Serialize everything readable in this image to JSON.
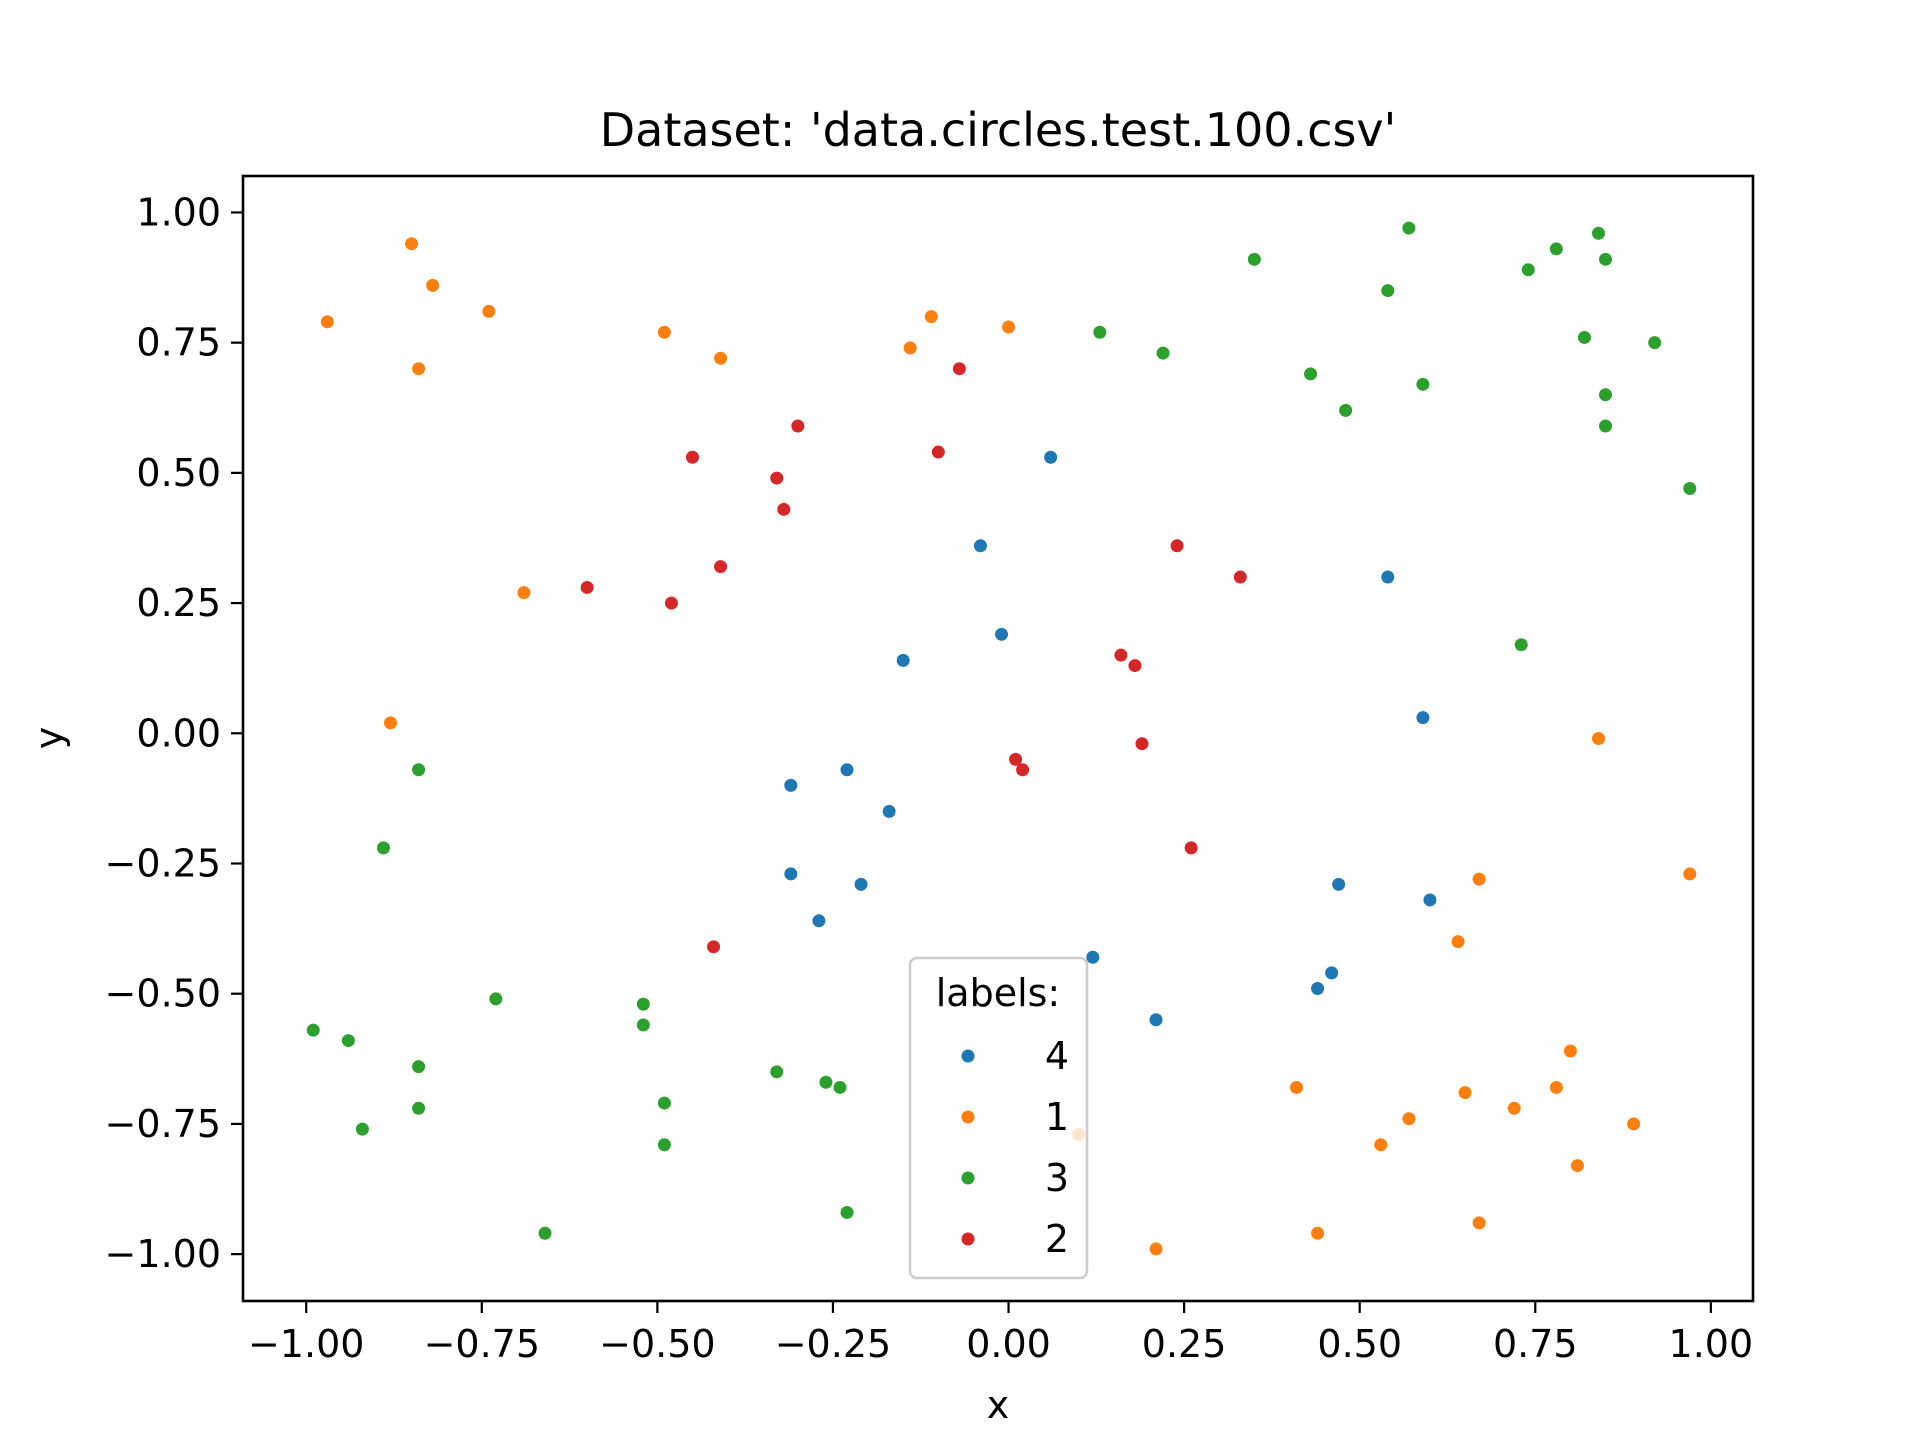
{
  "chart_data": {
    "type": "scatter",
    "title": "Dataset: 'data.circles.test.100.csv'",
    "xlabel": "x",
    "ylabel": "y",
    "xlim": [
      -1.09,
      1.06
    ],
    "ylim": [
      -1.09,
      1.07
    ],
    "xticks": [
      -1.0,
      -0.75,
      -0.5,
      -0.25,
      0.0,
      0.25,
      0.5,
      0.75,
      1.0
    ],
    "xtick_labels": [
      "−1.00",
      "−0.75",
      "−0.50",
      "−0.25",
      "0.00",
      "0.25",
      "0.50",
      "0.75",
      "1.00"
    ],
    "yticks": [
      1.0,
      0.75,
      0.5,
      0.25,
      0.0,
      -0.25,
      -0.5,
      -0.75,
      -1.0
    ],
    "ytick_labels": [
      "1.00",
      "0.75",
      "0.50",
      "0.25",
      "0.00",
      "−0.25",
      "−0.50",
      "−0.75",
      "−1.00"
    ],
    "grid": false,
    "legend": {
      "title": "labels:",
      "placement": "lower center"
    },
    "series": [
      {
        "name": "4",
        "color": "#1f77b4",
        "points": [
          [
            0.06,
            0.53
          ],
          [
            -0.04,
            0.36
          ],
          [
            -0.01,
            0.19
          ],
          [
            -0.15,
            0.14
          ],
          [
            0.54,
            0.3
          ],
          [
            0.59,
            0.03
          ],
          [
            -0.23,
            -0.07
          ],
          [
            -0.31,
            -0.1
          ],
          [
            -0.17,
            -0.15
          ],
          [
            -0.31,
            -0.27
          ],
          [
            -0.21,
            -0.29
          ],
          [
            -0.27,
            -0.36
          ],
          [
            0.47,
            -0.29
          ],
          [
            0.6,
            -0.32
          ],
          [
            0.12,
            -0.43
          ],
          [
            0.44,
            -0.49
          ],
          [
            0.46,
            -0.46
          ],
          [
            0.21,
            -0.55
          ]
        ]
      },
      {
        "name": "1",
        "color": "#ff7f0e",
        "points": [
          [
            -0.97,
            0.79
          ],
          [
            -0.85,
            0.94
          ],
          [
            -0.82,
            0.86
          ],
          [
            -0.84,
            0.7
          ],
          [
            -0.74,
            0.81
          ],
          [
            -0.49,
            0.77
          ],
          [
            -0.41,
            0.72
          ],
          [
            -0.11,
            0.8
          ],
          [
            -0.14,
            0.74
          ],
          [
            0.0,
            0.78
          ],
          [
            -0.69,
            0.27
          ],
          [
            -0.88,
            0.02
          ],
          [
            0.84,
            -0.01
          ],
          [
            0.97,
            -0.27
          ],
          [
            0.67,
            -0.28
          ],
          [
            0.64,
            -0.4
          ],
          [
            0.41,
            -0.68
          ],
          [
            0.57,
            -0.74
          ],
          [
            0.53,
            -0.79
          ],
          [
            0.65,
            -0.69
          ],
          [
            0.72,
            -0.72
          ],
          [
            0.78,
            -0.68
          ],
          [
            0.8,
            -0.61
          ],
          [
            0.89,
            -0.75
          ],
          [
            0.81,
            -0.83
          ],
          [
            0.67,
            -0.94
          ],
          [
            0.44,
            -0.96
          ],
          [
            0.21,
            -0.99
          ],
          [
            0.1,
            -0.77
          ]
        ]
      },
      {
        "name": "3",
        "color": "#2ca02c",
        "points": [
          [
            0.35,
            0.91
          ],
          [
            0.57,
            0.97
          ],
          [
            0.54,
            0.85
          ],
          [
            0.74,
            0.89
          ],
          [
            0.78,
            0.93
          ],
          [
            0.84,
            0.96
          ],
          [
            0.85,
            0.91
          ],
          [
            0.82,
            0.76
          ],
          [
            0.92,
            0.75
          ],
          [
            0.43,
            0.69
          ],
          [
            0.59,
            0.67
          ],
          [
            0.48,
            0.62
          ],
          [
            0.85,
            0.65
          ],
          [
            0.85,
            0.59
          ],
          [
            0.97,
            0.47
          ],
          [
            0.13,
            0.77
          ],
          [
            0.22,
            0.73
          ],
          [
            0.73,
            0.17
          ],
          [
            -0.84,
            -0.07
          ],
          [
            -0.89,
            -0.22
          ],
          [
            -0.73,
            -0.51
          ],
          [
            -0.52,
            -0.52
          ],
          [
            -0.52,
            -0.56
          ],
          [
            -0.99,
            -0.57
          ],
          [
            -0.94,
            -0.59
          ],
          [
            -0.84,
            -0.64
          ],
          [
            -0.84,
            -0.72
          ],
          [
            -0.92,
            -0.76
          ],
          [
            -0.49,
            -0.71
          ],
          [
            -0.49,
            -0.79
          ],
          [
            -0.33,
            -0.65
          ],
          [
            -0.26,
            -0.67
          ],
          [
            -0.24,
            -0.68
          ],
          [
            -0.23,
            -0.92
          ],
          [
            -0.66,
            -0.96
          ]
        ]
      },
      {
        "name": "2",
        "color": "#d62728",
        "points": [
          [
            -0.07,
            0.7
          ],
          [
            -0.3,
            0.59
          ],
          [
            -0.45,
            0.53
          ],
          [
            -0.1,
            0.54
          ],
          [
            -0.33,
            0.49
          ],
          [
            -0.32,
            0.43
          ],
          [
            -0.41,
            0.32
          ],
          [
            -0.6,
            0.28
          ],
          [
            -0.48,
            0.25
          ],
          [
            0.24,
            0.36
          ],
          [
            0.33,
            0.3
          ],
          [
            0.16,
            0.15
          ],
          [
            0.18,
            0.13
          ],
          [
            0.19,
            -0.02
          ],
          [
            0.01,
            -0.05
          ],
          [
            0.02,
            -0.07
          ],
          [
            0.26,
            -0.22
          ],
          [
            -0.42,
            -0.41
          ]
        ]
      }
    ]
  }
}
